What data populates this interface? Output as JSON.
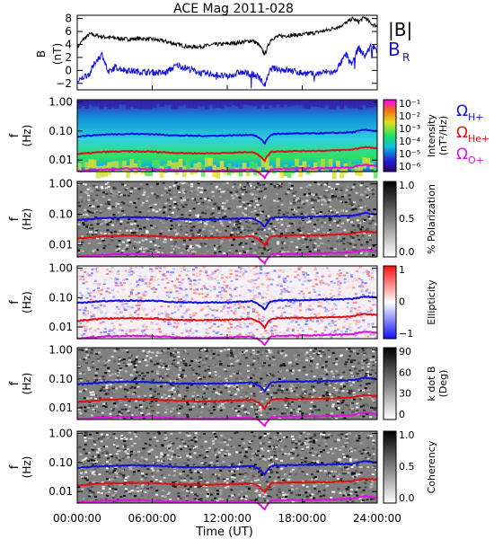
{
  "title": "ACE Mag 2011-028",
  "colors": {
    "B": "#000000",
    "BR": "#1010e0",
    "H": "#1010e0",
    "He": "#e01010",
    "O": "#e010e0"
  },
  "time_axis": {
    "label": "Time (UT)",
    "ticks": [
      "00:00:00",
      "06:00:00",
      "12:00:00",
      "18:00:00",
      "24:00:00"
    ],
    "range_hours": [
      0,
      24
    ]
  },
  "panels": {
    "mag": {
      "ylabel": "B",
      "yunit": "(nT)",
      "ticks": [
        "8",
        "6",
        "4",
        "2",
        "0",
        "−2"
      ],
      "legend_B": "|B|",
      "legend_BR": "B",
      "legend_BR_sub": "R"
    },
    "f_ticks": [
      "1.00",
      "0.10",
      "0.01"
    ],
    "f_label": "f",
    "f_unit": "(Hz)",
    "intensity": {
      "cbar_title": "Intensity",
      "cbar_unit": "(nT²/Hz)",
      "cbar_ticks": [
        "10⁻¹",
        "10⁻²",
        "10⁻³",
        "10⁻⁴",
        "10⁻⁵",
        "10⁻⁶"
      ],
      "gyro": [
        {
          "sym": "Ω",
          "sub": "H+"
        },
        {
          "sym": "Ω",
          "sub": "He+"
        },
        {
          "sym": "Ω",
          "sub": "O+"
        }
      ]
    },
    "polarization": {
      "cbar_title": "% Polarization",
      "cbar_ticks": [
        "1.0",
        "0.5",
        "0.0"
      ]
    },
    "ellipticity": {
      "cbar_title": "Ellipticity",
      "cbar_ticks": [
        "1",
        "0",
        "−1"
      ]
    },
    "kdotb": {
      "cbar_title": "k dot B",
      "cbar_unit": "(Deg)",
      "cbar_ticks": [
        "90",
        "60",
        "30",
        "0"
      ]
    },
    "coherency": {
      "cbar_title": "Coherency",
      "cbar_ticks": [
        "1.0",
        "0.5",
        "0.0"
      ]
    }
  },
  "chart_data": {
    "type": "line",
    "title": "ACE Mag 2011-028",
    "xlabel": "Time (UT)",
    "xlim_hours": [
      0,
      24
    ],
    "mag_panel": {
      "ylabel": "B (nT)",
      "ylim": [
        -3,
        8.5
      ],
      "series": [
        {
          "name": "|B|",
          "x": [
            0,
            0.5,
            1,
            1.5,
            2,
            3,
            4,
            5,
            6,
            7,
            8,
            9,
            10,
            11,
            12,
            13,
            14,
            14.5,
            15,
            15.5,
            16,
            17,
            18,
            19,
            20,
            21,
            21.5,
            22,
            22.5,
            23,
            23.5,
            24
          ],
          "values": [
            3.5,
            4.8,
            5.6,
            5.4,
            5.2,
            5.0,
            4.8,
            4.9,
            4.8,
            4.5,
            4.0,
            3.6,
            3.7,
            4.0,
            4.1,
            4.3,
            4.6,
            4.0,
            2.5,
            4.8,
            5.2,
            5.4,
            5.5,
            5.8,
            6.2,
            6.8,
            7.3,
            8.0,
            7.5,
            8.2,
            7.2,
            6.8
          ]
        },
        {
          "name": "B_R",
          "x": [
            0,
            0.5,
            1,
            1.5,
            2,
            2.5,
            3,
            4,
            5,
            6,
            7,
            8,
            9,
            10,
            11,
            12,
            13,
            14,
            14.5,
            15,
            15.5,
            16,
            17,
            18,
            19,
            20,
            20.5,
            21,
            21.5,
            22,
            22.5,
            23,
            23.5,
            24
          ],
          "values": [
            -2.0,
            -1.0,
            -0.5,
            1.5,
            2.5,
            -0.5,
            0.5,
            0.0,
            -0.2,
            -0.3,
            -0.4,
            0.8,
            0.2,
            -0.5,
            -0.6,
            -1.0,
            -0.3,
            -0.6,
            -1.0,
            -2.3,
            0.3,
            0.2,
            0.0,
            -0.4,
            -0.6,
            -0.2,
            -0.4,
            0.8,
            2.5,
            1.0,
            3.5,
            2.2,
            3.8,
            3.2
          ]
        }
      ]
    },
    "spectral_panels": {
      "ylabel": "f (Hz)",
      "ylim_hz": [
        0.004,
        1.2
      ],
      "yscale": "log",
      "gyrofrequency_lines": [
        {
          "name": "ΩH+",
          "x": [
            0,
            2,
            4,
            6,
            8,
            10,
            12,
            14,
            14.5,
            15,
            15.5,
            16,
            18,
            20,
            22,
            23,
            24
          ],
          "values": [
            0.065,
            0.075,
            0.08,
            0.078,
            0.07,
            0.068,
            0.07,
            0.075,
            0.06,
            0.038,
            0.075,
            0.08,
            0.082,
            0.085,
            0.09,
            0.11,
            0.1
          ]
        },
        {
          "name": "ΩHe+",
          "x": [
            0,
            2,
            4,
            6,
            8,
            10,
            12,
            14,
            14.5,
            15,
            15.5,
            16,
            18,
            20,
            22,
            23,
            24
          ],
          "values": [
            0.016,
            0.019,
            0.02,
            0.0195,
            0.0175,
            0.017,
            0.0175,
            0.019,
            0.015,
            0.0095,
            0.019,
            0.02,
            0.0205,
            0.021,
            0.023,
            0.028,
            0.025
          ]
        },
        {
          "name": "ΩO+",
          "x": [
            0,
            2,
            4,
            6,
            8,
            10,
            12,
            14,
            14.5,
            15,
            15.5,
            16,
            18,
            20,
            22,
            23,
            24
          ],
          "values": [
            0.0041,
            0.0047,
            0.005,
            0.0049,
            0.0044,
            0.0043,
            0.0044,
            0.0047,
            0.0038,
            0.0024,
            0.0047,
            0.005,
            0.0051,
            0.0053,
            0.0057,
            0.0069,
            0.0063
          ]
        }
      ],
      "panels": [
        "Intensity",
        "% Polarization",
        "Ellipticity",
        "k dot B",
        "Coherency"
      ]
    }
  }
}
